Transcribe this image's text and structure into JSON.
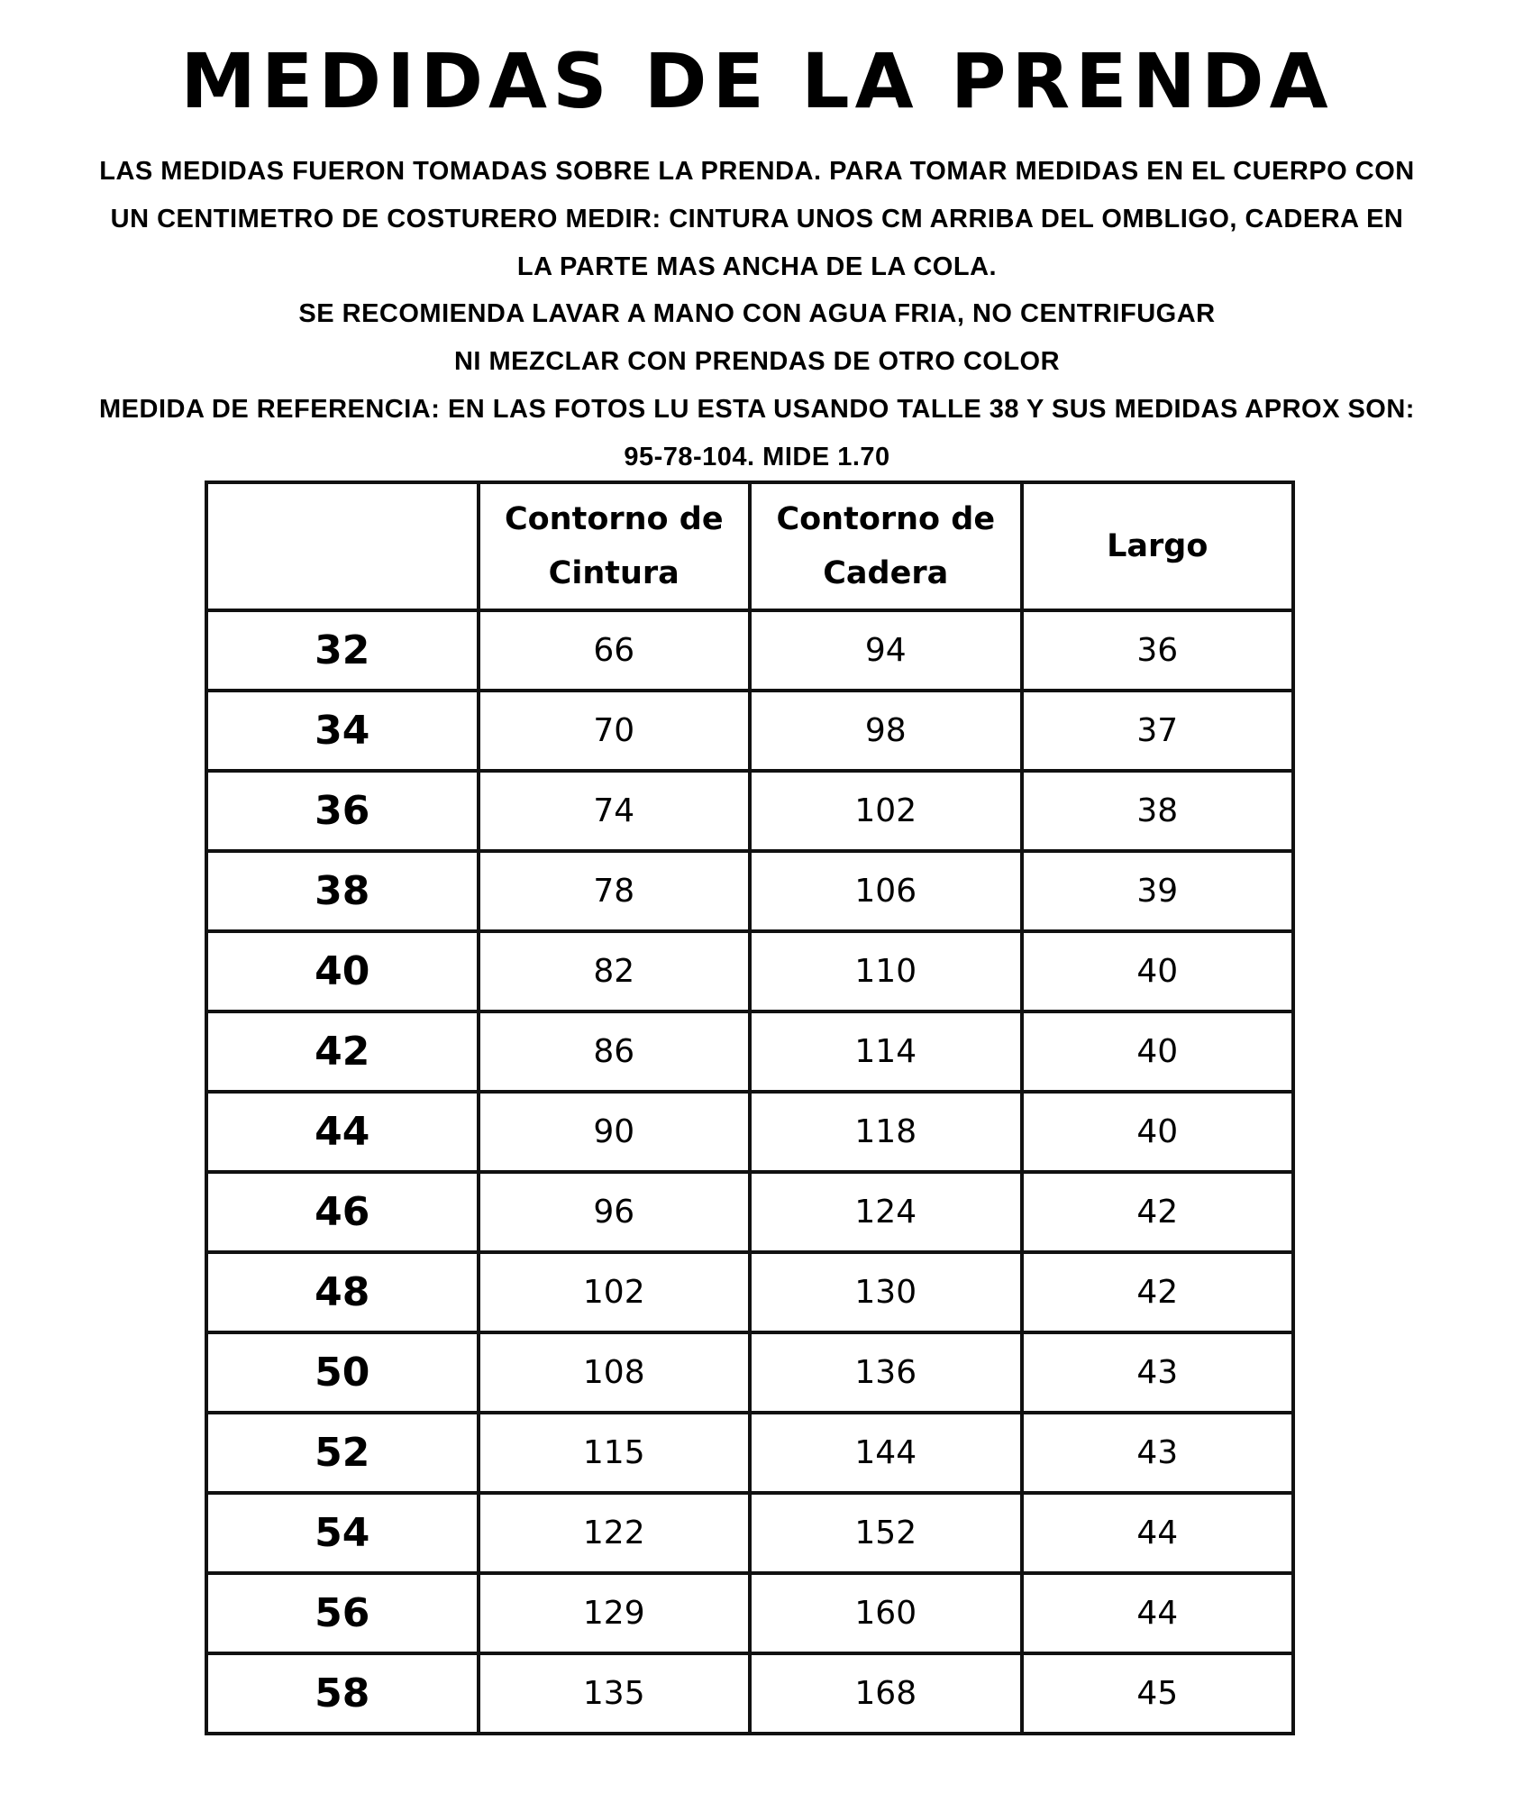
{
  "title": "MEDIDAS DE LA PRENDA",
  "notes": [
    "LAS MEDIDAS FUERON TOMADAS SOBRE LA PRENDA. PARA TOMAR MEDIDAS EN EL CUERPO CON",
    "UN CENTIMETRO DE COSTURERO MEDIR: CINTURA UNOS CM ARRIBA DEL OMBLIGO, CADERA EN",
    "LA PARTE MAS ANCHA DE LA COLA.",
    "SE RECOMIENDA LAVAR A MANO CON AGUA FRIA, NO CENTRIFUGAR",
    "NI MEZCLAR CON PRENDAS DE OTRO COLOR",
    "MEDIDA DE REFERENCIA: EN LAS FOTOS LU ESTA USANDO TALLE 38 Y SUS MEDIDAS APROX SON:",
    "95-78-104. MIDE 1.70"
  ],
  "table": {
    "headers": [
      "",
      "Contorno de Cintura",
      "Contorno de Cadera",
      "Largo"
    ],
    "rows": [
      [
        "32",
        "66",
        "94",
        "36"
      ],
      [
        "34",
        "70",
        "98",
        "37"
      ],
      [
        "36",
        "74",
        "102",
        "38"
      ],
      [
        "38",
        "78",
        "106",
        "39"
      ],
      [
        "40",
        "82",
        "110",
        "40"
      ],
      [
        "42",
        "86",
        "114",
        "40"
      ],
      [
        "44",
        "90",
        "118",
        "40"
      ],
      [
        "46",
        "96",
        "124",
        "42"
      ],
      [
        "48",
        "102",
        "130",
        "42"
      ],
      [
        "50",
        "108",
        "136",
        "43"
      ],
      [
        "52",
        "115",
        "144",
        "43"
      ],
      [
        "54",
        "122",
        "152",
        "44"
      ],
      [
        "56",
        "129",
        "160",
        "44"
      ],
      [
        "58",
        "135",
        "168",
        "45"
      ]
    ]
  }
}
